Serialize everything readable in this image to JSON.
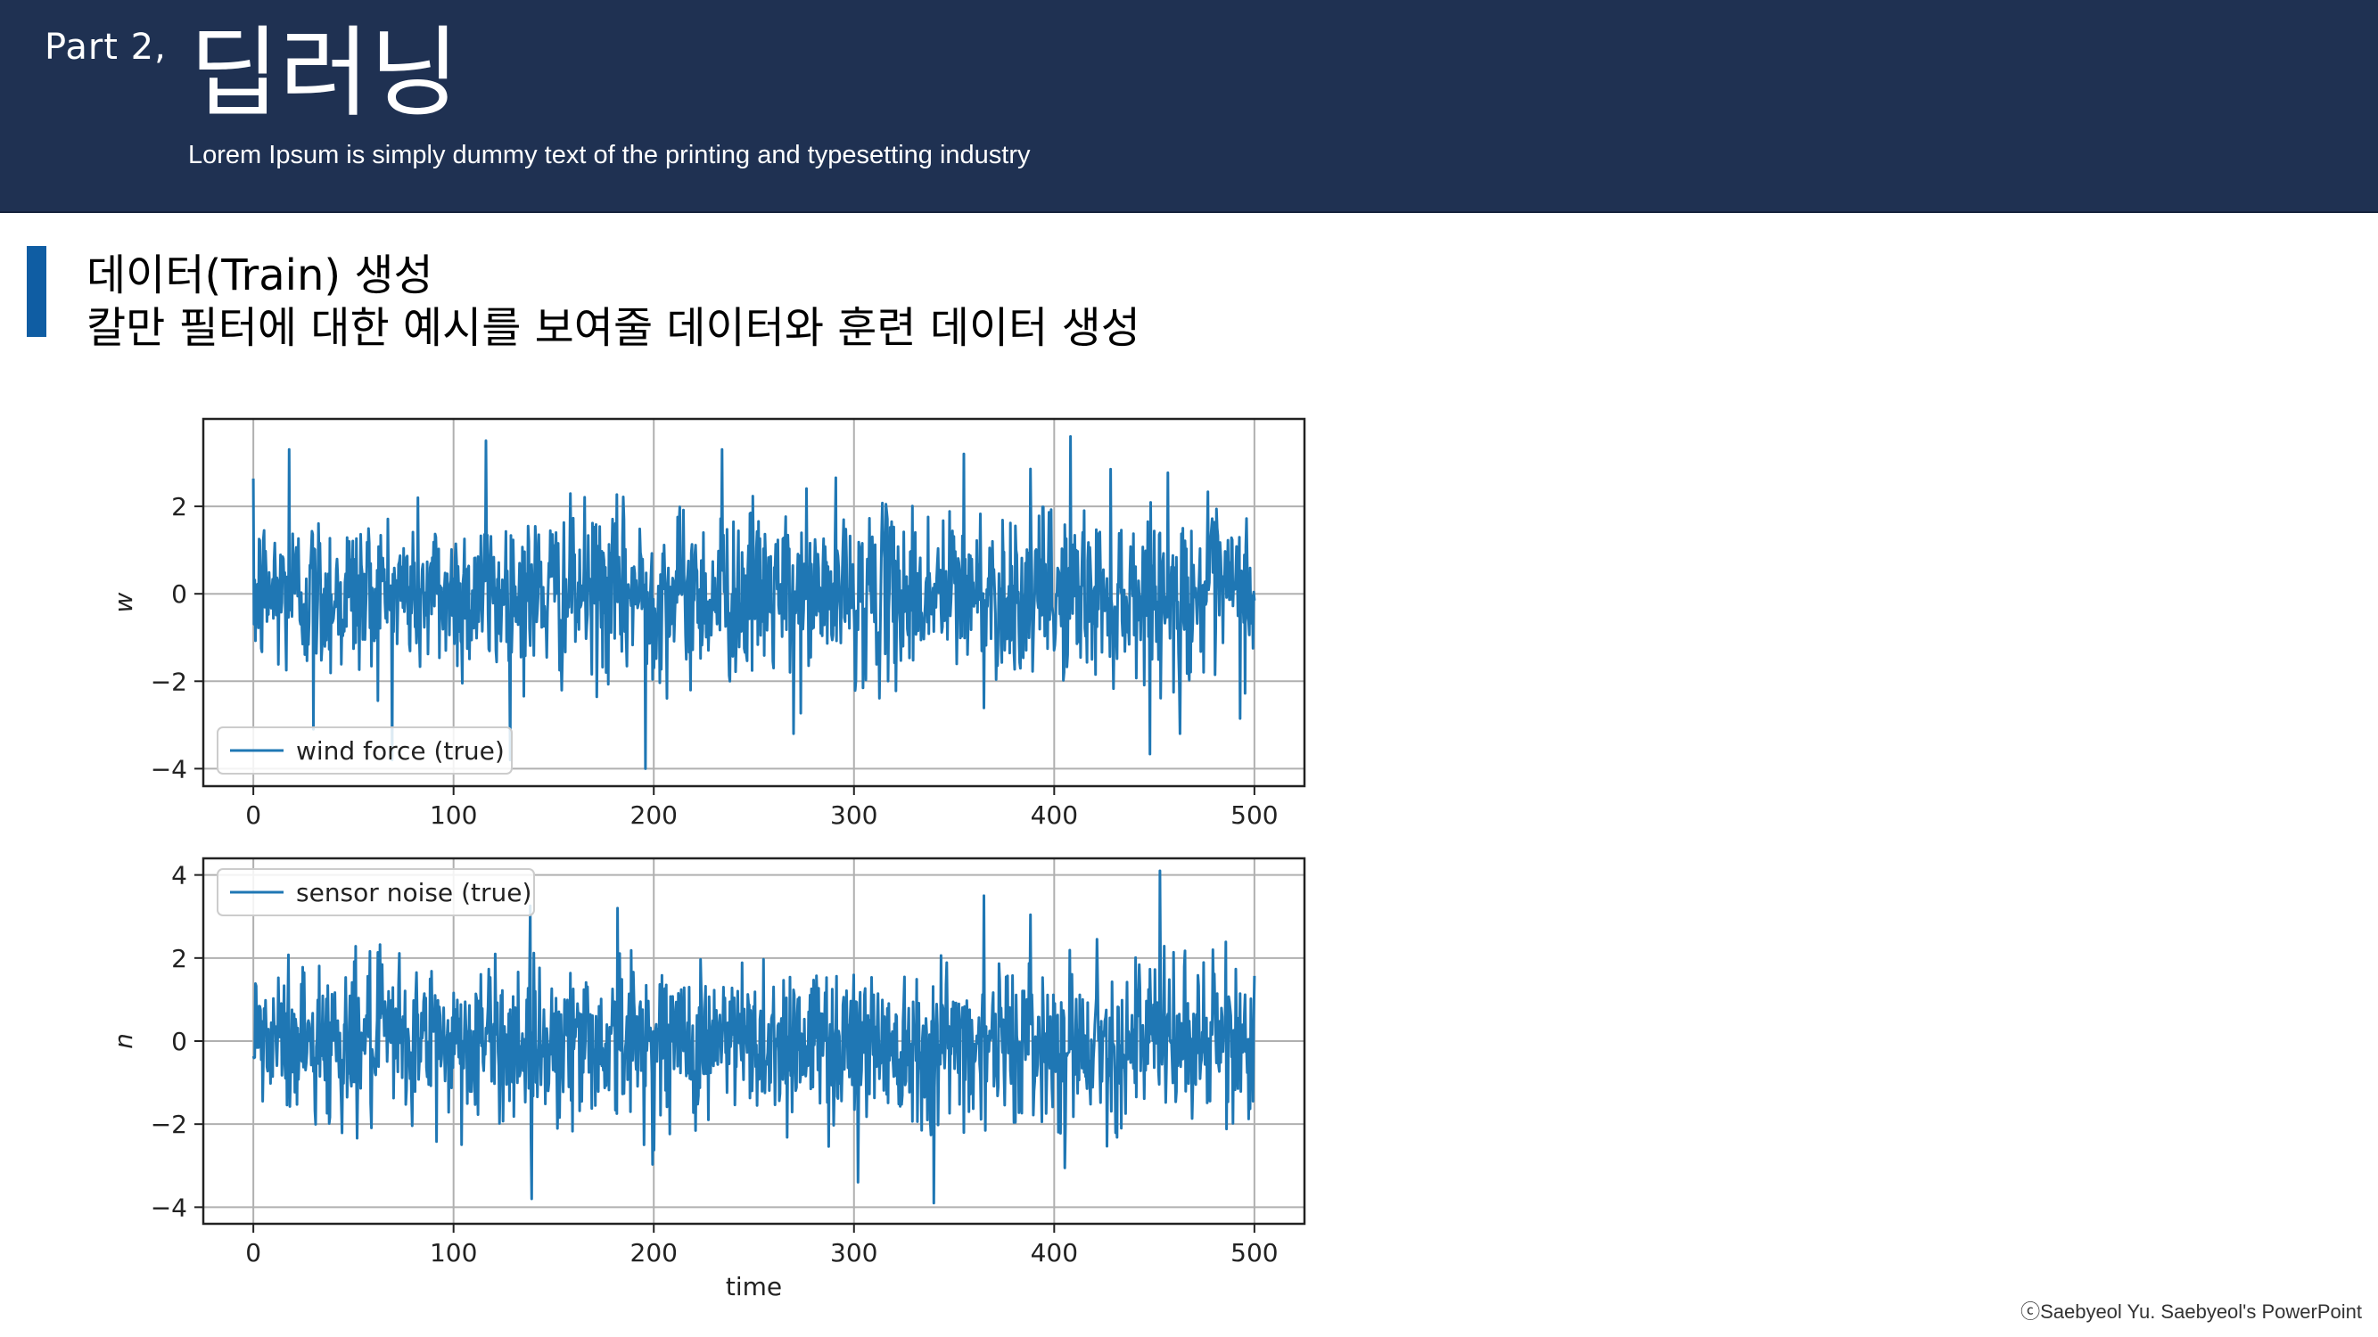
{
  "header": {
    "part_label": "Part 2,",
    "title": "딥러닝",
    "subtitle": "Lorem Ipsum is simply dummy text of the printing and typesetting industry"
  },
  "section": {
    "title": "데이터(Train) 생성",
    "description": "칼만 필터에 대한 예시를 보여줄 데이터와 훈련 데이터 생성"
  },
  "footer": {
    "copyright": "ⓒSaebyeol Yu. Saebyeol's PowerPoint"
  },
  "colors": {
    "header_bg": "#1f3152",
    "accent": "#0f5da3",
    "series": "#1f77b4"
  },
  "chart_data": [
    {
      "type": "line",
      "ylabel": "w",
      "xlabel": "",
      "xlim": [
        -25,
        525
      ],
      "ylim": [
        -4.4,
        4.0
      ],
      "xticks": [
        0,
        100,
        200,
        300,
        400,
        500
      ],
      "yticks": [
        -4,
        -2,
        0,
        2
      ],
      "ytick_labels": [
        "−4",
        "−2",
        "0",
        "2"
      ],
      "grid": true,
      "legend": "lower-left",
      "series": [
        {
          "name": "wind force (true)",
          "x_range": [
            0,
            500
          ],
          "approx_std": 1.0,
          "peaks": [
            {
              "x": 18,
              "y": 3.3
            },
            {
              "x": 116,
              "y": 3.5
            },
            {
              "x": 234,
              "y": 3.3
            },
            {
              "x": 355,
              "y": 3.2
            },
            {
              "x": 408,
              "y": 3.6
            },
            {
              "x": 196,
              "y": -4.0
            },
            {
              "x": 30,
              "y": -3.1
            },
            {
              "x": 463,
              "y": -3.2
            },
            {
              "x": 270,
              "y": -3.2
            }
          ]
        }
      ]
    },
    {
      "type": "line",
      "ylabel": "n",
      "xlabel": "time",
      "xlim": [
        -25,
        525
      ],
      "ylim": [
        -4.4,
        4.4
      ],
      "xticks": [
        0,
        100,
        200,
        300,
        400,
        500
      ],
      "yticks": [
        -4,
        -2,
        0,
        2,
        4
      ],
      "ytick_labels": [
        "−4",
        "−2",
        "0",
        "2",
        "4"
      ],
      "grid": true,
      "legend": "upper-left",
      "series": [
        {
          "name": "sensor noise (true)",
          "x_range": [
            0,
            500
          ],
          "approx_std": 1.0,
          "peaks": [
            {
              "x": 453,
              "y": 4.1
            },
            {
              "x": 365,
              "y": 3.5
            },
            {
              "x": 182,
              "y": 3.2
            },
            {
              "x": 139,
              "y": -3.8
            },
            {
              "x": 340,
              "y": -3.9
            },
            {
              "x": 302,
              "y": -3.4
            }
          ]
        }
      ]
    }
  ]
}
